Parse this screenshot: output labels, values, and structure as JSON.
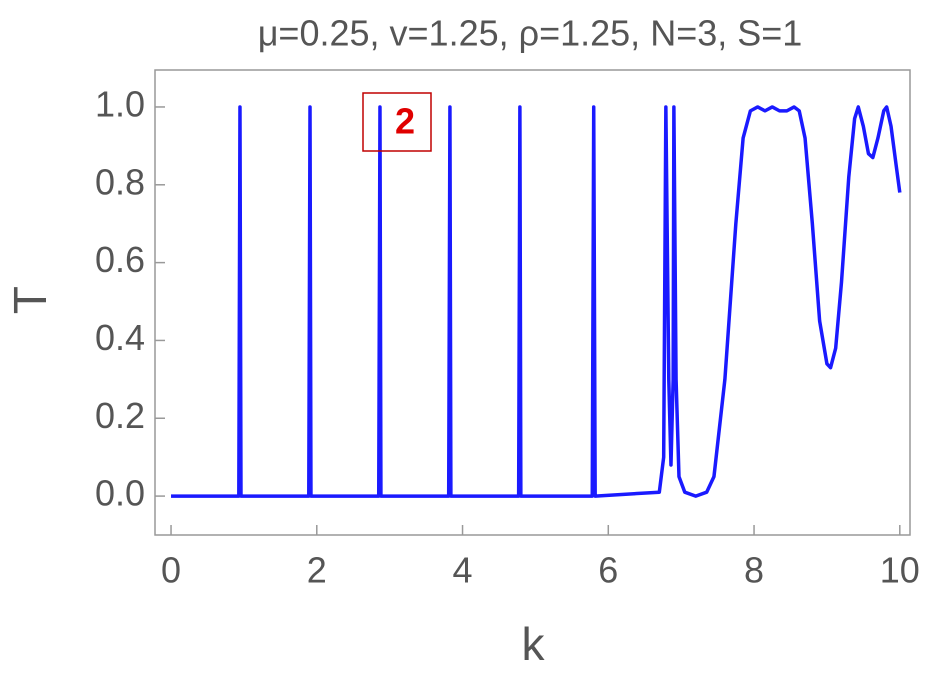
{
  "chart_data": {
    "type": "line",
    "title": "μ=0.25, v=1.25, ρ=1.25, N=3, S=1",
    "x_label": "k",
    "y_label": "T",
    "annotation": "2",
    "x": [
      0,
      0.93,
      0.946,
      0.96,
      1.89,
      1.907,
      1.92,
      2.85,
      2.867,
      2.88,
      3.81,
      3.827,
      3.84,
      4.77,
      4.787,
      4.8,
      5.78,
      5.8,
      5.82,
      6.7,
      6.76,
      6.79,
      6.83,
      6.86,
      6.89,
      6.9,
      6.93,
      6.97,
      7.05,
      7.2,
      7.35,
      7.45,
      7.6,
      7.75,
      7.85,
      7.95,
      8.05,
      8.15,
      8.25,
      8.35,
      8.45,
      8.55,
      8.62,
      8.7,
      8.8,
      8.9,
      9.0,
      9.05,
      9.12,
      9.2,
      9.3,
      9.38,
      9.43,
      9.5,
      9.57,
      9.63,
      9.7,
      9.78,
      9.82,
      9.88,
      9.95,
      10
    ],
    "series": [
      {
        "name": "T",
        "color": "#1a1aff",
        "values": [
          0,
          0,
          1.0,
          0,
          0,
          1.0,
          0,
          0,
          1.0,
          0,
          0,
          1.0,
          0,
          0,
          1.0,
          0,
          0,
          1.0,
          0,
          0.01,
          0.1,
          1.0,
          0.3,
          0.08,
          0.3,
          1.0,
          0.3,
          0.05,
          0.01,
          0,
          0.01,
          0.05,
          0.3,
          0.7,
          0.92,
          0.99,
          1.0,
          0.99,
          1.0,
          0.99,
          0.99,
          1.0,
          0.99,
          0.92,
          0.7,
          0.45,
          0.34,
          0.33,
          0.38,
          0.55,
          0.82,
          0.97,
          1.0,
          0.95,
          0.88,
          0.87,
          0.92,
          0.99,
          1.0,
          0.95,
          0.85,
          0.78
        ]
      }
    ],
    "xlim": [
      -0.22,
      10.14
    ],
    "ylim": [
      -0.1,
      1.095
    ],
    "xticks": [
      0,
      2,
      4,
      6,
      8,
      10
    ],
    "yticks": [
      {
        "value": 0,
        "label": "0.0"
      },
      {
        "value": 0.2,
        "label": "0.2"
      },
      {
        "value": 0.4,
        "label": "0.4"
      },
      {
        "value": 0.6,
        "label": "0.6"
      },
      {
        "value": 0.8,
        "label": "0.8"
      },
      {
        "value": 1.0,
        "label": "1.0"
      }
    ]
  }
}
